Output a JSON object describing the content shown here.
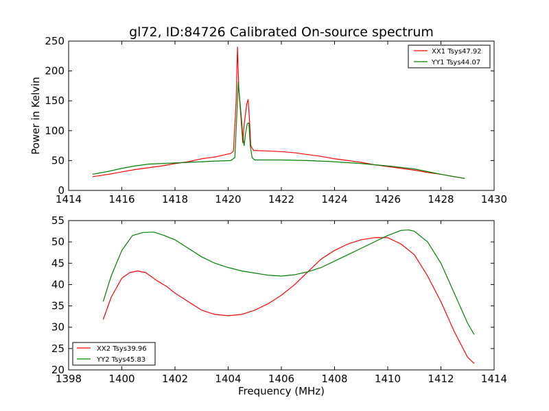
{
  "chart_data": [
    {
      "type": "line",
      "title": "gl72, ID:84726 Calibrated On-source spectrum",
      "xlabel": "",
      "ylabel": "Power in Kelvin",
      "xlim": [
        1414,
        1430
      ],
      "ylim": [
        0,
        250
      ],
      "xticks": [
        1414,
        1416,
        1418,
        1420,
        1422,
        1424,
        1426,
        1428,
        1430
      ],
      "yticks": [
        0,
        50,
        100,
        150,
        200,
        250
      ],
      "grid": false,
      "legend_position": "top-right",
      "series": [
        {
          "name": "XX1 Tsys47.92",
          "color": "#ff0000",
          "points": [
            [
              1414.9,
              23
            ],
            [
              1415.5,
              27
            ],
            [
              1416,
              31
            ],
            [
              1416.5,
              35
            ],
            [
              1417,
              38
            ],
            [
              1417.5,
              41
            ],
            [
              1418,
              45
            ],
            [
              1418.5,
              48
            ],
            [
              1419,
              53
            ],
            [
              1419.5,
              56
            ],
            [
              1419.9,
              60
            ],
            [
              1420.1,
              62
            ],
            [
              1420.2,
              66
            ],
            [
              1420.3,
              150
            ],
            [
              1420.35,
              240
            ],
            [
              1420.4,
              170
            ],
            [
              1420.45,
              140
            ],
            [
              1420.5,
              110
            ],
            [
              1420.55,
              80
            ],
            [
              1420.6,
              110
            ],
            [
              1420.7,
              145
            ],
            [
              1420.75,
              152
            ],
            [
              1420.8,
              120
            ],
            [
              1420.85,
              75
            ],
            [
              1420.95,
              67
            ],
            [
              1421.5,
              66
            ],
            [
              1422,
              65
            ],
            [
              1422.5,
              63
            ],
            [
              1423,
              60
            ],
            [
              1423.5,
              57
            ],
            [
              1424,
              53
            ],
            [
              1424.5,
              50
            ],
            [
              1425,
              47
            ],
            [
              1425.5,
              43
            ],
            [
              1426,
              40
            ],
            [
              1426.5,
              37
            ],
            [
              1427,
              34
            ],
            [
              1427.5,
              30
            ],
            [
              1428,
              27
            ],
            [
              1428.5,
              23
            ],
            [
              1428.9,
              20
            ]
          ]
        },
        {
          "name": "YY1 Tsys44.07",
          "color": "#008000",
          "points": [
            [
              1414.9,
              27
            ],
            [
              1415.5,
              32
            ],
            [
              1416,
              37
            ],
            [
              1416.5,
              41
            ],
            [
              1417,
              44
            ],
            [
              1417.5,
              45
            ],
            [
              1418,
              46
            ],
            [
              1418.5,
              47
            ],
            [
              1419,
              48
            ],
            [
              1419.5,
              49
            ],
            [
              1420.1,
              50
            ],
            [
              1420.25,
              55
            ],
            [
              1420.33,
              130
            ],
            [
              1420.38,
              182
            ],
            [
              1420.45,
              145
            ],
            [
              1420.5,
              120
            ],
            [
              1420.55,
              90
            ],
            [
              1420.6,
              75
            ],
            [
              1420.65,
              95
            ],
            [
              1420.72,
              112
            ],
            [
              1420.78,
              113
            ],
            [
              1420.83,
              75
            ],
            [
              1420.9,
              55
            ],
            [
              1421,
              51
            ],
            [
              1422,
              51
            ],
            [
              1423,
              50
            ],
            [
              1424,
              48
            ],
            [
              1425,
              45
            ],
            [
              1426,
              41
            ],
            [
              1427,
              36
            ],
            [
              1428,
              27
            ],
            [
              1428.9,
              20
            ]
          ]
        }
      ]
    },
    {
      "type": "line",
      "title": "",
      "xlabel": "Frequency (MHz)",
      "ylabel": "",
      "xlim": [
        1398,
        1414
      ],
      "ylim": [
        20,
        55
      ],
      "xticks": [
        1398,
        1400,
        1402,
        1404,
        1406,
        1408,
        1410,
        1412,
        1414
      ],
      "yticks": [
        20,
        25,
        30,
        35,
        40,
        45,
        50,
        55
      ],
      "grid": false,
      "legend_position": "bottom-left",
      "series": [
        {
          "name": "XX2 Tsys39.96",
          "color": "#ff0000",
          "points": [
            [
              1399.3,
              31.8
            ],
            [
              1399.6,
              37
            ],
            [
              1400,
              41.5
            ],
            [
              1400.3,
              42.8
            ],
            [
              1400.6,
              43.2
            ],
            [
              1400.9,
              42.8
            ],
            [
              1401.3,
              41
            ],
            [
              1401.7,
              39.5
            ],
            [
              1402,
              38
            ],
            [
              1402.5,
              36
            ],
            [
              1403,
              34
            ],
            [
              1403.5,
              33
            ],
            [
              1404,
              32.7
            ],
            [
              1404.5,
              33
            ],
            [
              1405,
              34
            ],
            [
              1405.5,
              35.5
            ],
            [
              1406,
              37.5
            ],
            [
              1406.5,
              40
            ],
            [
              1407,
              43
            ],
            [
              1407.5,
              46
            ],
            [
              1408,
              48
            ],
            [
              1408.5,
              49.5
            ],
            [
              1409,
              50.5
            ],
            [
              1409.5,
              51
            ],
            [
              1410,
              51
            ],
            [
              1410.5,
              49.5
            ],
            [
              1411,
              47
            ],
            [
              1411.5,
              42
            ],
            [
              1412,
              36
            ],
            [
              1412.5,
              29
            ],
            [
              1413,
              23
            ],
            [
              1413.25,
              21.5
            ]
          ]
        },
        {
          "name": "YY2 Tsys45.83",
          "color": "#008000",
          "points": [
            [
              1399.3,
              36
            ],
            [
              1399.6,
              42
            ],
            [
              1400,
              48
            ],
            [
              1400.4,
              51.5
            ],
            [
              1400.8,
              52.2
            ],
            [
              1401.2,
              52.3
            ],
            [
              1401.6,
              51.5
            ],
            [
              1402,
              50.5
            ],
            [
              1402.5,
              48.5
            ],
            [
              1403,
              46.5
            ],
            [
              1403.5,
              45
            ],
            [
              1404,
              44
            ],
            [
              1404.5,
              43.2
            ],
            [
              1405,
              42.7
            ],
            [
              1405.5,
              42.2
            ],
            [
              1406,
              42
            ],
            [
              1406.5,
              42.3
            ],
            [
              1407,
              43
            ],
            [
              1407.5,
              44
            ],
            [
              1408,
              45.5
            ],
            [
              1408.5,
              47
            ],
            [
              1409,
              48.5
            ],
            [
              1409.5,
              50
            ],
            [
              1410,
              51.5
            ],
            [
              1410.5,
              52.7
            ],
            [
              1410.8,
              52.8
            ],
            [
              1411,
              52.5
            ],
            [
              1411.5,
              50
            ],
            [
              1412,
              45
            ],
            [
              1412.5,
              38
            ],
            [
              1413,
              31
            ],
            [
              1413.25,
              28.3
            ]
          ]
        }
      ]
    }
  ]
}
